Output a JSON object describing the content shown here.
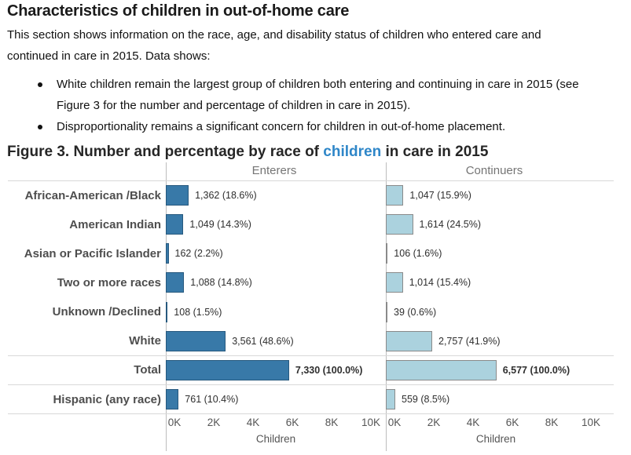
{
  "document": {
    "title": "Characteristics of children in out-of-home care",
    "intro_lines": [
      "This section shows information on the race, age, and disability status of children who entered care and",
      "continued in care in 2015. Data shows:"
    ],
    "bullets": [
      "White children remain the largest group of children both entering and continuing in care in 2015 (see Figure 3 for the number and percentage of children in care in 2015).",
      "Disproportionality remains a significant concern for children in out-of-home placement."
    ]
  },
  "figure": {
    "title_prefix": "Figure 3. Number and percentage by race of ",
    "title_highlight": "children",
    "title_suffix": " in care in 2015",
    "highlight_color": "#2E86C8"
  },
  "chart_data": {
    "type": "bar",
    "orientation": "horizontal",
    "categories": [
      "African-American /Black",
      "American Indian",
      "Asian or Pacific Islander",
      "Two or more races",
      "Unknown /Declined",
      "White",
      "Total",
      "Hispanic (any race)"
    ],
    "series": [
      {
        "name": "Enterers",
        "color": "#3879A8",
        "values": [
          1362,
          1049,
          162,
          1088,
          108,
          3561,
          7330,
          761
        ],
        "labels": [
          "1,362 (18.6%)",
          "1,049 (14.3%)",
          "162 (2.2%)",
          "1,088 (14.8%)",
          "108 (1.5%)",
          "3,561 (48.6%)",
          "7,330 (100.0%)",
          "761 (10.4%)"
        ]
      },
      {
        "name": "Continuers",
        "color": "#ABD2DE",
        "border_color": "#8A8A8A",
        "values": [
          1047,
          1614,
          106,
          1014,
          39,
          2757,
          6577,
          559
        ],
        "labels": [
          "1,047 (15.9%)",
          "1,614 (24.5%)",
          "106 (1.6%)",
          "1,014 (15.4%)",
          "39 (0.6%)",
          "2,757 (41.9%)",
          "6,577 (100.0%)",
          "559 (8.5%)"
        ]
      }
    ],
    "bold_row": "Total",
    "x_ticks": [
      "0K",
      "2K",
      "4K",
      "6K",
      "8K",
      "10K"
    ],
    "x_tick_interval": 2000,
    "xlabel": "Children",
    "axis_display_max": 10000,
    "grid": "separator lines below header, around Total row, and at axis"
  }
}
